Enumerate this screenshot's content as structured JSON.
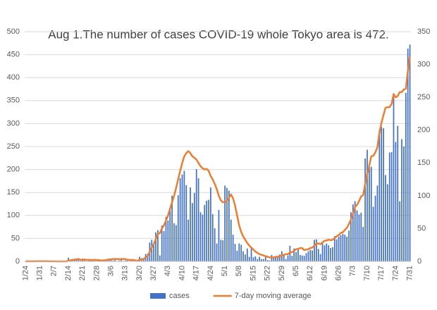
{
  "chart_data": {
    "type": "bar",
    "title": "Aug 1.The number of cases COVID-19 whole Tokyo area is 472.",
    "categories": [
      "1/24",
      null,
      null,
      null,
      null,
      null,
      null,
      "1/31",
      null,
      null,
      null,
      null,
      null,
      null,
      "2/7",
      null,
      null,
      null,
      null,
      null,
      null,
      "2/14",
      null,
      null,
      null,
      null,
      null,
      null,
      "2/21",
      null,
      null,
      null,
      null,
      null,
      null,
      "2/28",
      null,
      null,
      null,
      null,
      null,
      null,
      "3/6",
      null,
      null,
      null,
      null,
      null,
      null,
      "3/13",
      null,
      null,
      null,
      null,
      null,
      null,
      "3/20",
      null,
      null,
      null,
      null,
      null,
      null,
      "3/27",
      null,
      null,
      null,
      null,
      null,
      null,
      "4/3",
      null,
      null,
      null,
      null,
      null,
      null,
      "4/10",
      null,
      null,
      null,
      null,
      null,
      null,
      "4/17",
      null,
      null,
      null,
      null,
      null,
      null,
      "4/24",
      null,
      null,
      null,
      null,
      null,
      null,
      "5/1",
      null,
      null,
      null,
      null,
      null,
      null,
      "5/8",
      null,
      null,
      null,
      null,
      null,
      null,
      "5/15",
      null,
      null,
      null,
      null,
      null,
      null,
      "5/22",
      null,
      null,
      null,
      null,
      null,
      null,
      "5/29",
      null,
      null,
      null,
      null,
      null,
      null,
      "6/5",
      null,
      null,
      null,
      null,
      null,
      null,
      "6/12",
      null,
      null,
      null,
      null,
      null,
      null,
      "6/19",
      null,
      null,
      null,
      null,
      null,
      null,
      "6/26",
      null,
      null,
      null,
      null,
      null,
      null,
      "7/3",
      null,
      null,
      null,
      null,
      null,
      null,
      "7/10",
      null,
      null,
      null,
      null,
      null,
      null,
      "7/17",
      null,
      null,
      null,
      null,
      null,
      null,
      "7/24",
      null,
      null,
      null,
      null,
      null,
      null,
      "7/31"
    ],
    "series": [
      {
        "name": "cases",
        "type": "bar",
        "color": "#4472c4",
        "values": [
          1,
          0,
          0,
          0,
          0,
          0,
          1,
          0,
          0,
          0,
          0,
          0,
          0,
          0,
          0,
          0,
          0,
          0,
          0,
          0,
          1,
          8,
          2,
          5,
          3,
          3,
          3,
          1,
          3,
          3,
          0,
          3,
          2,
          3,
          3,
          1,
          1,
          1,
          0,
          3,
          5,
          6,
          6,
          2,
          3,
          0,
          2,
          7,
          1,
          2,
          2,
          0,
          2,
          0,
          2,
          0,
          10,
          7,
          4,
          16,
          17,
          41,
          47,
          40,
          63,
          68,
          13,
          78,
          66,
          97,
          89,
          116,
          143,
          83,
          79,
          144,
          181,
          189,
          197,
          166,
          91,
          161,
          127,
          149,
          201,
          181,
          107,
          102,
          123,
          132,
          134,
          161,
          103,
          72,
          39,
          112,
          47,
          46,
          165,
          160,
          154,
          91,
          58,
          38,
          23,
          39,
          36,
          22,
          15,
          28,
          10,
          30,
          9,
          11,
          5,
          10,
          5,
          5,
          11,
          3,
          2,
          14,
          8,
          10,
          11,
          15,
          22,
          14,
          5,
          13,
          34,
          12,
          28,
          20,
          26,
          14,
          13,
          12,
          18,
          22,
          25,
          24,
          47,
          48,
          27,
          16,
          41,
          35,
          39,
          35,
          29,
          31,
          55,
          48,
          54,
          57,
          60,
          58,
          54,
          67,
          107,
          124,
          131,
          111,
          102,
          106,
          75,
          224,
          243,
          206,
          206,
          119,
          143,
          165,
          286,
          293,
          290,
          188,
          168,
          237,
          238,
          366,
          260,
          295,
          131,
          266,
          250,
          367,
          463,
          472
        ]
      },
      {
        "name": "7-day moving average",
        "type": "line",
        "axis": "y2",
        "color": "#ed7d31",
        "values": [
          0.1,
          0.1,
          0.1,
          0.1,
          0.1,
          0.1,
          0.3,
          0.3,
          0.3,
          0.3,
          0.3,
          0.1,
          0.1,
          0.1,
          0.1,
          0,
          0,
          0,
          0,
          0,
          0.1,
          1.3,
          1.6,
          2.3,
          2.7,
          3.1,
          3.6,
          2.1,
          2.9,
          2.7,
          2.3,
          2.3,
          2.1,
          2.1,
          2.4,
          2.1,
          1.9,
          1.6,
          1.4,
          1.7,
          2.4,
          2.9,
          3.1,
          3.6,
          3.6,
          3.6,
          3.4,
          3.6,
          3.6,
          3.6,
          2.4,
          2.4,
          2.0,
          2.3,
          1.4,
          1.1,
          2.4,
          3.0,
          3.6,
          6.0,
          8.4,
          14.4,
          21.1,
          26.4,
          33.9,
          41.6,
          43.0,
          50,
          55,
          62,
          70,
          80,
          90,
          100,
          112,
          125,
          138,
          150,
          160,
          165,
          168,
          165,
          160,
          158,
          155,
          150,
          145,
          142,
          140,
          141,
          138,
          130,
          125,
          118,
          110,
          100,
          93,
          90,
          90,
          92,
          97,
          102,
          96,
          85,
          70,
          55,
          45,
          38,
          33,
          28,
          24,
          21,
          18,
          15,
          13,
          11,
          10,
          9,
          8,
          7,
          6,
          6,
          6,
          7,
          7,
          8,
          9,
          10,
          11,
          11.0,
          13.9,
          13.9,
          15.9,
          18.6,
          19.0,
          20.3,
          20.3,
          17.1,
          18.0,
          18.4,
          20.3,
          21.0,
          24.1,
          27.1,
          27.4,
          26.3,
          28.9,
          31.4,
          31.9,
          33.1,
          32.3,
          33.0,
          35.4,
          38.4,
          40.1,
          43.4,
          44.4,
          48.0,
          51.1,
          57,
          64,
          73,
          83,
          86,
          92,
          99,
          101,
          118,
          134,
          146,
          160,
          161,
          166,
          174,
          196,
          211,
          223,
          234,
          235,
          235,
          240,
          255,
          250,
          252,
          258,
          258,
          262,
          263,
          290,
          312
        ]
      }
    ],
    "ylim": [
      0,
      500
    ],
    "yticks": [
      0,
      50,
      100,
      150,
      200,
      250,
      300,
      350,
      400,
      450,
      500
    ],
    "y2lim": [
      0,
      350
    ],
    "y2ticks": [
      0,
      50,
      100,
      150,
      200,
      250,
      300,
      350
    ],
    "grid": true,
    "legend": "bottom"
  }
}
